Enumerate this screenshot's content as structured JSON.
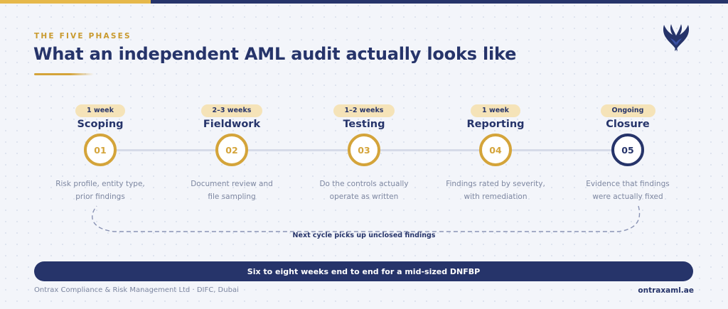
{
  "header": {
    "eyebrow": "THE FIVE PHASES",
    "title": "What an independent AML audit actually looks like"
  },
  "logo": {
    "icon": "phoenix-wings-logo",
    "colors": [
      "#26346a",
      "#3d54a8"
    ]
  },
  "phases": [
    {
      "duration": "1 week",
      "name": "Scoping",
      "number": "01",
      "desc_line1": "Risk profile, entity type,",
      "desc_line2": "prior findings"
    },
    {
      "duration": "2–3 weeks",
      "name": "Fieldwork",
      "number": "02",
      "desc_line1": "Document review and",
      "desc_line2": "file sampling"
    },
    {
      "duration": "1–2 weeks",
      "name": "Testing",
      "number": "03",
      "desc_line1": "Do the controls actually",
      "desc_line2": "operate as written"
    },
    {
      "duration": "1 week",
      "name": "Reporting",
      "number": "04",
      "desc_line1": "Findings rated by severity,",
      "desc_line2": "with remediation"
    },
    {
      "duration": "Ongoing",
      "name": "Closure",
      "number": "05",
      "desc_line1": "Evidence that findings",
      "desc_line2": "were actually fixed"
    }
  ],
  "loop_label": "Next cycle picks up unclosed findings",
  "summary": "Six to eight weeks end to end for a mid-sized DNFBP",
  "footer": {
    "left": "Ontrax Compliance & Risk Management Ltd · DIFC, Dubai",
    "right": "ontraxaml.ae"
  },
  "colors": {
    "navy": "#26346a",
    "gold": "#d4a43a",
    "badge_bg": "#f5e3b8",
    "muted_text": "#7c86a0",
    "background": "#f3f5fa"
  }
}
